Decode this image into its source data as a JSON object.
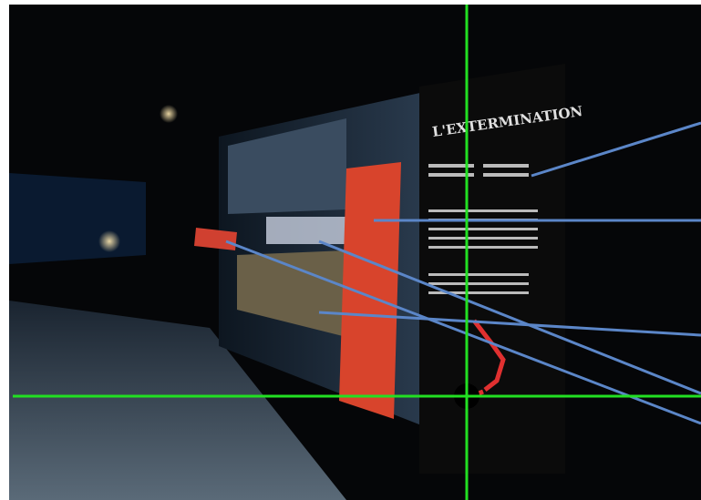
{
  "sign": {
    "heading": "L'EXTERMINATION"
  }
}
